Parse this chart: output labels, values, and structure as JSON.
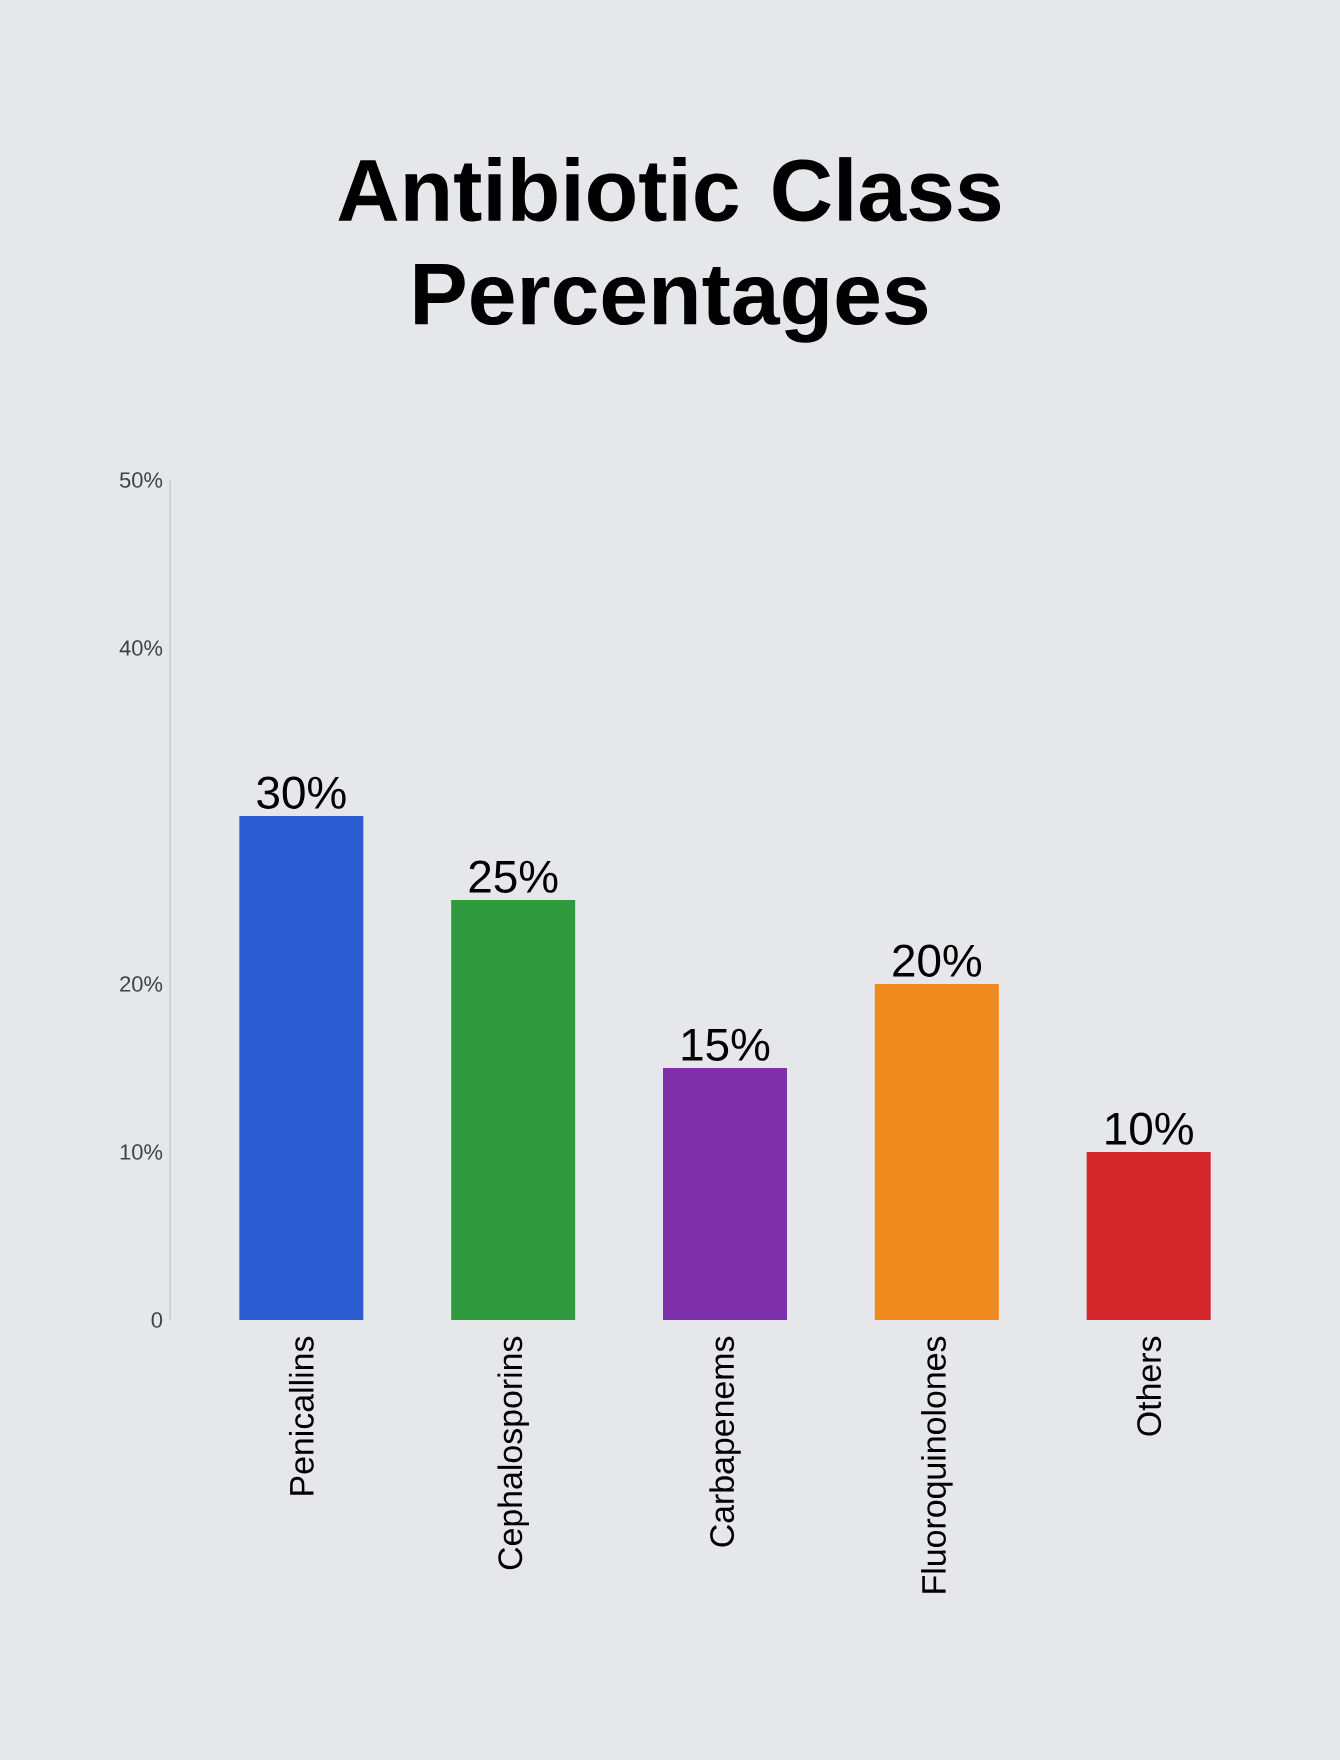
{
  "chart_data": {
    "type": "bar",
    "title": "Antibiotic Class Percentages",
    "categories": [
      "Penicallins",
      "Cephalosporins",
      "Carbapenems",
      "Fluoroquinolones",
      "Others"
    ],
    "values": [
      30,
      25,
      15,
      20,
      10
    ],
    "colors": [
      "#2a5bd0",
      "#2f9a3e",
      "#7d30aa",
      "#ef8a1f",
      "#d3262a"
    ],
    "value_labels": [
      "30%",
      "25%",
      "15%",
      "20%",
      "10%"
    ],
    "ylim": [
      0,
      50
    ],
    "yticks": [
      0,
      {
        "value": 10,
        "label": "10%"
      },
      {
        "value": 20,
        "label": "20%"
      },
      {
        "value": 40,
        "label": "40%"
      },
      {
        "value": 50,
        "label": "50%"
      }
    ]
  }
}
